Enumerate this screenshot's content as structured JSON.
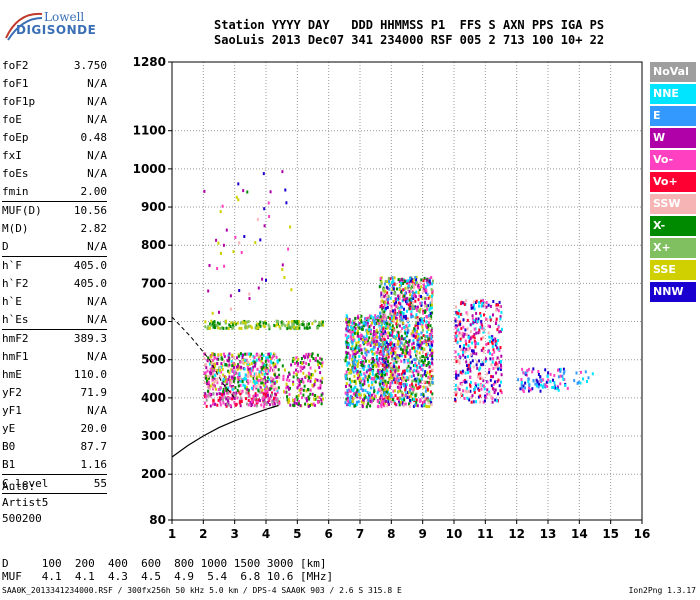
{
  "logo": {
    "line1": "Lowell",
    "line2": "DIGISONDE"
  },
  "header": {
    "line1": "Station YYYY DAY   DDD HHMMSS P1  FFS S AXN PPS IGA PS",
    "line2": "SaoLuis 2013 Dec07 341 234000 RSF 005 2 713 100 10+ 22"
  },
  "params": [
    {
      "name": "foF2",
      "value": "3.750",
      "sep": false
    },
    {
      "name": "foF1",
      "value": "N/A",
      "sep": false
    },
    {
      "name": "foF1p",
      "value": "N/A",
      "sep": false
    },
    {
      "name": "foE",
      "value": "N/A",
      "sep": false
    },
    {
      "name": "foEp",
      "value": "0.48",
      "sep": false
    },
    {
      "name": "fxI",
      "value": "N/A",
      "sep": false
    },
    {
      "name": "foEs",
      "value": "N/A",
      "sep": false
    },
    {
      "name": "fmin",
      "value": "2.00",
      "sep": true
    },
    {
      "name": "MUF(D)",
      "value": "10.56",
      "sep": false
    },
    {
      "name": "M(D)",
      "value": "2.82",
      "sep": false
    },
    {
      "name": "D",
      "value": "N/A",
      "sep": true
    },
    {
      "name": "h`F",
      "value": "405.0",
      "sep": false
    },
    {
      "name": "h`F2",
      "value": "405.0",
      "sep": false
    },
    {
      "name": "h`E",
      "value": "N/A",
      "sep": false
    },
    {
      "name": "h`Es",
      "value": "N/A",
      "sep": true
    },
    {
      "name": "hmF2",
      "value": "389.3",
      "sep": false
    },
    {
      "name": "hmF1",
      "value": "N/A",
      "sep": false
    },
    {
      "name": "hmE",
      "value": "110.0",
      "sep": false
    },
    {
      "name": "yF2",
      "value": "71.9",
      "sep": false
    },
    {
      "name": "yF1",
      "value": "N/A",
      "sep": false
    },
    {
      "name": "yE",
      "value": "20.0",
      "sep": false
    },
    {
      "name": "B0",
      "value": "87.7",
      "sep": false
    },
    {
      "name": "B1",
      "value": "1.16",
      "sep": true
    },
    {
      "name": "C-level",
      "value": "55",
      "sep": true
    }
  ],
  "auto": {
    "line1": "Auto:",
    "line2": "Artist5",
    "line3": "500200"
  },
  "legend": [
    {
      "label": "NoVal",
      "color": "#9e9e9e"
    },
    {
      "label": "NNE",
      "color": "#00e5ff"
    },
    {
      "label": "E",
      "color": "#3399ff"
    },
    {
      "label": "W",
      "color": "#b000a8"
    },
    {
      "label": "Vo-",
      "color": "#ff40c0"
    },
    {
      "label": "Vo+",
      "color": "#ff0033"
    },
    {
      "label": "SSW",
      "color": "#f7b4b4"
    },
    {
      "label": "X-",
      "color": "#008a00"
    },
    {
      "label": "X+",
      "color": "#80c060"
    },
    {
      "label": "SSE",
      "color": "#d0d000"
    },
    {
      "label": "NNW",
      "color": "#1a00d0"
    }
  ],
  "dmuf": {
    "line1": "D     100  200  400  600  800 1000 1500 3000 [km]",
    "line2": "MUF   4.1  4.1  4.3  4.5  4.9  5.4  6.8 10.6 [MHz]"
  },
  "footer": {
    "text": "SAA0K_2013341234000.RSF / 300fx256h 50 kHz 5.0 km / DPS-4 SAA0K 903 / 2.6 S 315.8 E",
    "version": "Ion2Png 1.3.17"
  },
  "chart_data": {
    "type": "scatter",
    "xlim": [
      1,
      16
    ],
    "ylim": [
      80,
      1280
    ],
    "x_ticks": [
      1,
      2,
      3,
      4,
      5,
      6,
      7,
      8,
      9,
      10,
      11,
      12,
      13,
      14,
      15,
      16
    ],
    "y_ticks": [
      80,
      200,
      300,
      400,
      500,
      600,
      700,
      800,
      900,
      1000,
      1100,
      1280
    ],
    "grid": true,
    "legend_position": "right",
    "echo_clusters": [
      {
        "freq_range": [
          2.0,
          4.4
        ],
        "height_range": [
          380,
          420
        ],
        "density": "high",
        "colors": [
          "#b000a8",
          "#ff40c0",
          "#ff0033",
          "#9e9e9e"
        ]
      },
      {
        "freq_range": [
          2.0,
          4.4
        ],
        "height_range": [
          420,
          520
        ],
        "density": "high",
        "colors": [
          "#b000a8",
          "#ff40c0",
          "#f7b4b4",
          "#00e5ff",
          "#008a00",
          "#d0d000"
        ]
      },
      {
        "freq_range": [
          2.0,
          5.8
        ],
        "height_range": [
          585,
          605
        ],
        "density": "high",
        "colors": [
          "#d0d000",
          "#008a00",
          "#80c060"
        ]
      },
      {
        "freq_range": [
          4.5,
          5.8
        ],
        "height_range": [
          380,
          520
        ],
        "density": "medium",
        "colors": [
          "#b000a8",
          "#ff40c0",
          "#008a00",
          "#d0d000"
        ]
      },
      {
        "freq_range": [
          6.5,
          7.8
        ],
        "height_range": [
          380,
          620
        ],
        "density": "high",
        "colors": [
          "#b000a8",
          "#ff40c0",
          "#00e5ff",
          "#3399ff",
          "#d0d000",
          "#008a00"
        ]
      },
      {
        "freq_range": [
          7.6,
          9.3
        ],
        "height_range": [
          380,
          720
        ],
        "density": "high",
        "colors": [
          "#1a00d0",
          "#b000a8",
          "#ff40c0",
          "#00e5ff",
          "#3399ff",
          "#f7b4b4",
          "#d0d000",
          "#008a00",
          "#80c060",
          "#ff0033"
        ]
      },
      {
        "freq_range": [
          10.0,
          11.5
        ],
        "height_range": [
          390,
          660
        ],
        "density": "medium",
        "colors": [
          "#ff40c0",
          "#ff0033",
          "#b000a8",
          "#f7b4b4",
          "#1a00d0",
          "#00e5ff"
        ]
      },
      {
        "freq_range": [
          12.0,
          13.6
        ],
        "height_range": [
          420,
          480
        ],
        "density": "medium",
        "colors": [
          "#3399ff",
          "#00e5ff",
          "#1a00d0",
          "#ff40c0"
        ]
      },
      {
        "freq_range": [
          13.8,
          14.4
        ],
        "height_range": [
          440,
          480
        ],
        "density": "low",
        "colors": [
          "#ff40c0",
          "#3399ff",
          "#00e5ff"
        ]
      },
      {
        "freq_range": [
          2.0,
          4.8
        ],
        "height_range": [
          620,
          1000
        ],
        "density": "sparse",
        "colors": [
          "#d0d000",
          "#1a00d0",
          "#b000a8",
          "#008a00",
          "#ff40c0",
          "#f7b4b4"
        ]
      }
    ],
    "trace_curve": [
      [
        1,
        245
      ],
      [
        1.5,
        275
      ],
      [
        2,
        300
      ],
      [
        2.5,
        322
      ],
      [
        3,
        340
      ],
      [
        3.5,
        355
      ],
      [
        4,
        370
      ],
      [
        4.4,
        380
      ]
    ],
    "dashed_curve": [
      [
        1,
        612
      ],
      [
        1.6,
        560
      ],
      [
        2.2,
        500
      ],
      [
        2.6,
        440
      ],
      [
        3.0,
        400
      ]
    ]
  }
}
